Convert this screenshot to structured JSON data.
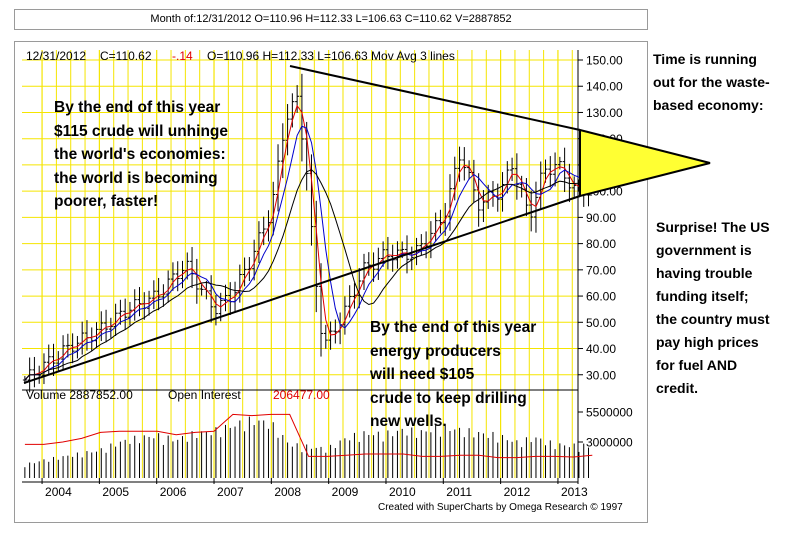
{
  "header": {
    "ohlc_line": "Month of:12/31/2012 O=110.96 H=112.33 L=106.63 C=110.62 V=2887852"
  },
  "price_panel": {
    "label_date": "12/31/2012",
    "label_close": "C=110.62",
    "label_change": "-.14",
    "label_rest": "O=110.96  H=112.33  L=106.63  Mov Avg 3 lines"
  },
  "volume_panel": {
    "label_volume": "Volume  2887852.00",
    "label_oi": "Open Interest",
    "oi_value": "206477.00"
  },
  "annotations": {
    "top_left": [
      "By the end of this year",
      "$115 crude will unhinge",
      "the world's economies:",
      "the world is becoming",
      "poorer, faster!"
    ],
    "bottom_mid": [
      "By the end of this year",
      "energy producers",
      "will need $105",
      "crude to keep drilling",
      "new wells."
    ],
    "right_top": [
      "Time is running",
      "out for the waste-",
      "based economy:"
    ],
    "right_bottom": [
      "Surprise! The US",
      "government is",
      "having trouble",
      "funding itself;",
      "the country must",
      "pay high prices",
      "for fuel AND",
      "credit."
    ]
  },
  "footer": {
    "credit": "Created with SuperCharts by Omega Research © 1997"
  },
  "colors": {
    "grid": "#f5e500",
    "triangle_fill": "#ffff33",
    "ma_fast": "#e00000",
    "ma_mid": "#0000cc",
    "ma_slow": "#000000",
    "volume_bar": "#000000",
    "open_interest": "#e00000",
    "change_negative": "#e00000"
  },
  "chart_data": {
    "type": "bar",
    "subtype": "monthly-ohlc-with-moving-averages",
    "price_axis": {
      "ticks": [
        "150.00",
        "140.00",
        "130.00",
        "120.00",
        "110.00",
        "100.00",
        "90.00",
        "80.00",
        "70.00",
        "60.00",
        "50.00",
        "40.00",
        "30.00"
      ],
      "ylim": [
        25,
        150
      ],
      "grid": true
    },
    "volume_axis": {
      "ticks": [
        "5500000",
        "3000000"
      ]
    },
    "x_axis": {
      "ticks": [
        "2004",
        "2005",
        "2006",
        "2007",
        "2008",
        "2009",
        "2010",
        "2011",
        "2012",
        "2013"
      ]
    },
    "series": [
      {
        "name": "price",
        "x": [
          "2003.7",
          "2004.0",
          "2004.5",
          "2005.0",
          "2005.5",
          "2006.0",
          "2006.5",
          "2007.0",
          "2007.3",
          "2007.6",
          "2008.0",
          "2008.25",
          "2008.45",
          "2008.6",
          "2008.75",
          "2008.9",
          "2009.0",
          "2009.3",
          "2009.6",
          "2010.0",
          "2010.5",
          "2011.0",
          "2011.3",
          "2011.6",
          "2012.0",
          "2012.2",
          "2012.5",
          "2012.75",
          "2013.0",
          "2013.3",
          "2013.6"
        ],
        "values": [
          28,
          33,
          41,
          47,
          55,
          60,
          72,
          55,
          60,
          72,
          93,
          128,
          135,
          112,
          70,
          42,
          43,
          55,
          70,
          76,
          76,
          90,
          115,
          95,
          100,
          110,
          90,
          108,
          110,
          100,
          102
        ]
      },
      {
        "name": "volume",
        "values": [
          1200000,
          1600000,
          1900000,
          2200000,
          2500000,
          3200000,
          3600000,
          3800000,
          3400000,
          4000000,
          4200000,
          4700000,
          5200000,
          4900000,
          3000000,
          2800000,
          2600000,
          3600000,
          4000000,
          3900000,
          4300000,
          4100000,
          4600000,
          4300000,
          4000000,
          3800000,
          3200000,
          3600000,
          3000000,
          2900000,
          2888000
        ]
      },
      {
        "name": "open_interest",
        "values": [
          2800000,
          2800000,
          3000000,
          3300000,
          3800000,
          3900000,
          3900000,
          3900000,
          3600000,
          3800000,
          3900000,
          5300000,
          5200000,
          5300000,
          5300000,
          1800000,
          1800000,
          1900000,
          2000000,
          2000000,
          2000000,
          1800000,
          1800000,
          1900000,
          1900000,
          1700000,
          1700000,
          1800000,
          1800000,
          1750000,
          1900000
        ]
      }
    ],
    "title": "",
    "xlabel": "",
    "ylabel": ""
  }
}
